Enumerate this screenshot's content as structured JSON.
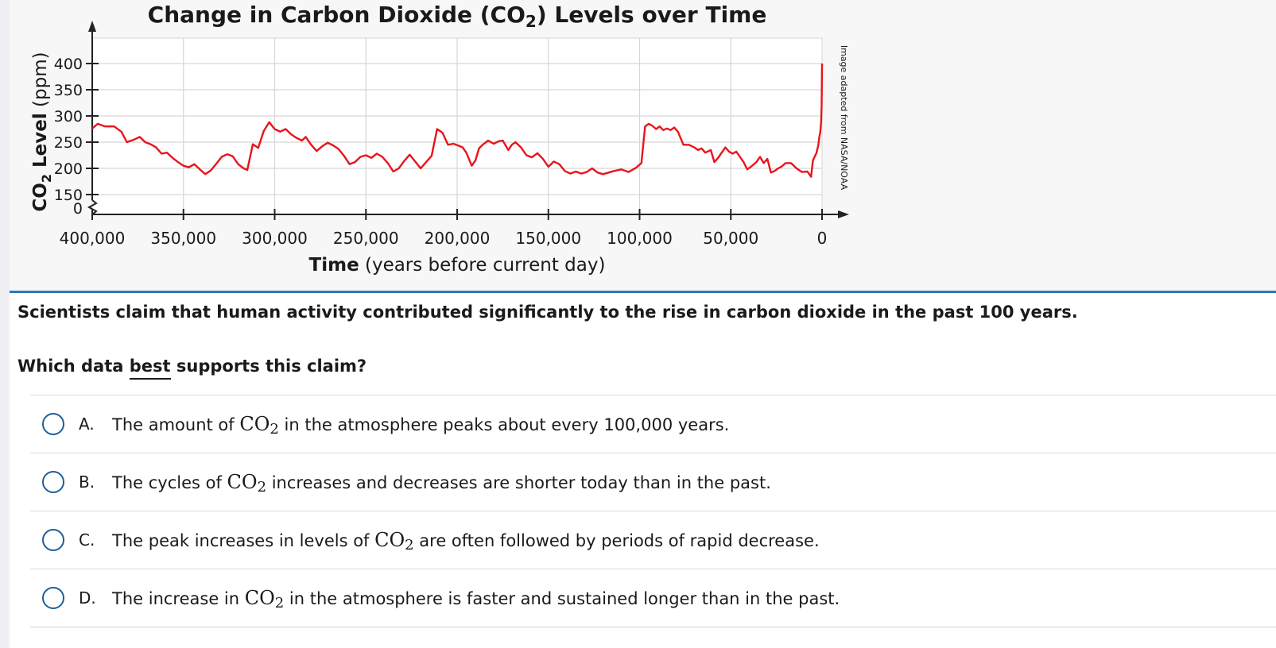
{
  "question": {
    "stem": "Scientists claim that human activity contributed significantly to the rise in carbon dioxide in the past 100 years.",
    "prompt_before": "Which data ",
    "prompt_emphasis": "best",
    "prompt_after": " supports this claim?",
    "choices": [
      {
        "letter": "A.",
        "before": "The amount of ",
        "after": " in the atmosphere peaks about every 100,000 years."
      },
      {
        "letter": "B.",
        "before": "The cycles of ",
        "after": " increases and decreases are shorter today than in the past."
      },
      {
        "letter": "C.",
        "before": "The peak increases in levels of ",
        "after": " are often followed by periods of rapid decrease."
      },
      {
        "letter": "D.",
        "before": "The increase in ",
        "after": " in the atmosphere is faster and sustained longer than in the past."
      }
    ],
    "chem_main": "CO",
    "chem_sub": "2"
  },
  "colors": {
    "accent": "#2d7ab8",
    "series": "#e8141b",
    "radio": "#1e5f9a"
  },
  "chart_data": {
    "type": "line",
    "title_before": "Change in Carbon Dioxide (CO",
    "title_sub": "2",
    "title_after": ") Levels over Time",
    "xlabel_bold": "Time",
    "xlabel_rest": " (years before current day)",
    "ylabel_before": "CO",
    "ylabel_sub": "2",
    "ylabel_bold": " Level",
    "ylabel_rest": " (ppm)",
    "source_note": "Image adapted from NASA/NOAA",
    "x_reversed": true,
    "xlim": [
      400000,
      0
    ],
    "ylim": [
      150,
      400
    ],
    "axis_break": true,
    "grid": true,
    "x_ticks": [
      {
        "value": 400000,
        "label": "400,000"
      },
      {
        "value": 350000,
        "label": "350,000"
      },
      {
        "value": 300000,
        "label": "300,000"
      },
      {
        "value": 250000,
        "label": "250,000"
      },
      {
        "value": 200000,
        "label": "200,000"
      },
      {
        "value": 150000,
        "label": "150,000"
      },
      {
        "value": 100000,
        "label": "100,000"
      },
      {
        "value": 50000,
        "label": "50,000"
      },
      {
        "value": 0,
        "label": "0"
      }
    ],
    "y_ticks": [
      {
        "value": 400,
        "label": "400"
      },
      {
        "value": 350,
        "label": "350"
      },
      {
        "value": 300,
        "label": "300"
      },
      {
        "value": 250,
        "label": "250"
      },
      {
        "value": 200,
        "label": "200"
      },
      {
        "value": 150,
        "label": "150"
      }
    ],
    "y_zero_label": "0",
    "series": [
      {
        "points": [
          [
            400000,
            276
          ],
          [
            397000,
            285
          ],
          [
            393000,
            280
          ],
          [
            388000,
            280
          ],
          [
            384000,
            270
          ],
          [
            381000,
            250
          ],
          [
            377000,
            255
          ],
          [
            374000,
            260
          ],
          [
            371000,
            250
          ],
          [
            368000,
            246
          ],
          [
            365000,
            240
          ],
          [
            362000,
            228
          ],
          [
            359000,
            230
          ],
          [
            356000,
            220
          ],
          [
            353000,
            212
          ],
          [
            350000,
            205
          ],
          [
            347000,
            202
          ],
          [
            344000,
            208
          ],
          [
            341000,
            198
          ],
          [
            338000,
            189
          ],
          [
            335000,
            196
          ],
          [
            332000,
            209
          ],
          [
            329000,
            222
          ],
          [
            326000,
            227
          ],
          [
            323000,
            223
          ],
          [
            320000,
            208
          ],
          [
            317000,
            200
          ],
          [
            315000,
            197
          ],
          [
            312000,
            246
          ],
          [
            309000,
            239
          ],
          [
            306000,
            271
          ],
          [
            303000,
            288
          ],
          [
            300000,
            275
          ],
          [
            297000,
            270
          ],
          [
            294000,
            275
          ],
          [
            291000,
            265
          ],
          [
            288000,
            258
          ],
          [
            285000,
            253
          ],
          [
            283000,
            260
          ],
          [
            280000,
            245
          ],
          [
            277000,
            233
          ],
          [
            274000,
            242
          ],
          [
            271000,
            249
          ],
          [
            268000,
            244
          ],
          [
            265000,
            237
          ],
          [
            262000,
            224
          ],
          [
            259000,
            208
          ],
          [
            256000,
            212
          ],
          [
            253000,
            222
          ],
          [
            250000,
            225
          ],
          [
            247000,
            220
          ],
          [
            244000,
            228
          ],
          [
            241000,
            222
          ],
          [
            238000,
            210
          ],
          [
            235000,
            194
          ],
          [
            232000,
            200
          ],
          [
            229000,
            214
          ],
          [
            226000,
            226
          ],
          [
            223000,
            213
          ],
          [
            220000,
            200
          ],
          [
            217000,
            212
          ],
          [
            214000,
            224
          ],
          [
            211000,
            275
          ],
          [
            208000,
            268
          ],
          [
            205000,
            245
          ],
          [
            202000,
            247
          ],
          [
            199000,
            243
          ],
          [
            197000,
            240
          ],
          [
            195000,
            230
          ],
          [
            192000,
            205
          ],
          [
            190000,
            215
          ],
          [
            188000,
            238
          ],
          [
            186000,
            245
          ],
          [
            183000,
            253
          ],
          [
            180000,
            247
          ],
          [
            177000,
            252
          ],
          [
            175000,
            253
          ],
          [
            172000,
            235
          ],
          [
            170000,
            245
          ],
          [
            168000,
            250
          ],
          [
            165000,
            240
          ],
          [
            162000,
            225
          ],
          [
            159000,
            221
          ],
          [
            156000,
            229
          ],
          [
            153000,
            218
          ],
          [
            150000,
            203
          ],
          [
            147000,
            213
          ],
          [
            144000,
            208
          ],
          [
            141000,
            195
          ],
          [
            138000,
            190
          ],
          [
            135000,
            194
          ],
          [
            132000,
            190
          ],
          [
            129000,
            193
          ],
          [
            126000,
            200
          ],
          [
            123000,
            192
          ],
          [
            120000,
            189
          ],
          [
            117000,
            192
          ],
          [
            114000,
            195
          ],
          [
            110000,
            198
          ],
          [
            106000,
            193
          ],
          [
            102000,
            201
          ],
          [
            99000,
            210
          ],
          [
            97000,
            280
          ],
          [
            95000,
            285
          ],
          [
            93000,
            281
          ],
          [
            91000,
            275
          ],
          [
            89000,
            280
          ],
          [
            87000,
            273
          ],
          [
            85000,
            276
          ],
          [
            83000,
            273
          ],
          [
            81000,
            278
          ],
          [
            79000,
            270
          ],
          [
            76000,
            245
          ],
          [
            73000,
            245
          ],
          [
            70000,
            240
          ],
          [
            68000,
            235
          ],
          [
            66000,
            238
          ],
          [
            64000,
            230
          ],
          [
            61000,
            235
          ],
          [
            59000,
            212
          ],
          [
            57000,
            220
          ],
          [
            55000,
            230
          ],
          [
            53000,
            240
          ],
          [
            51000,
            232
          ],
          [
            49000,
            228
          ],
          [
            47000,
            232
          ],
          [
            45000,
            222
          ],
          [
            43000,
            212
          ],
          [
            41000,
            198
          ],
          [
            39000,
            203
          ],
          [
            36000,
            212
          ],
          [
            34000,
            222
          ],
          [
            32000,
            210
          ],
          [
            30000,
            218
          ],
          [
            28000,
            192
          ],
          [
            26000,
            195
          ],
          [
            24000,
            200
          ],
          [
            22000,
            204
          ],
          [
            20000,
            210
          ],
          [
            17000,
            210
          ],
          [
            14000,
            200
          ],
          [
            11000,
            193
          ],
          [
            8000,
            194
          ],
          [
            6000,
            184
          ],
          [
            5000,
            215
          ],
          [
            3000,
            230
          ],
          [
            2000,
            245
          ],
          [
            1500,
            260
          ],
          [
            1000,
            268
          ],
          [
            500,
            290
          ],
          [
            200,
            320
          ],
          [
            0,
            400
          ]
        ]
      }
    ]
  }
}
